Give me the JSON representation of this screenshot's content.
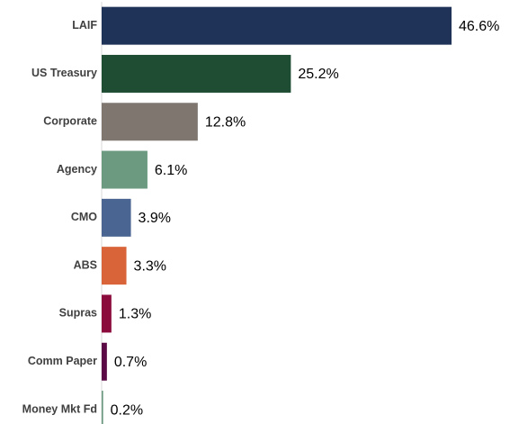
{
  "chart_data": {
    "type": "barh",
    "categories": [
      "LAIF",
      "US Treasury",
      "Corporate",
      "Agency",
      "CMO",
      "ABS",
      "Supras",
      "Comm Paper",
      "Money Mkt Fd"
    ],
    "values": [
      46.6,
      25.2,
      12.8,
      6.1,
      3.9,
      3.3,
      1.3,
      0.7,
      0.2
    ],
    "value_labels": [
      "46.6%",
      "25.2%",
      "12.8%",
      "6.1%",
      "3.9%",
      "3.3%",
      "1.3%",
      "0.7%",
      "0.2%"
    ],
    "colors": [
      "#1f3358",
      "#1e4d33",
      "#7f7670",
      "#6b9a80",
      "#4a6591",
      "#d9643a",
      "#8b0c3c",
      "#5c0a45",
      "#6b9a80"
    ]
  }
}
